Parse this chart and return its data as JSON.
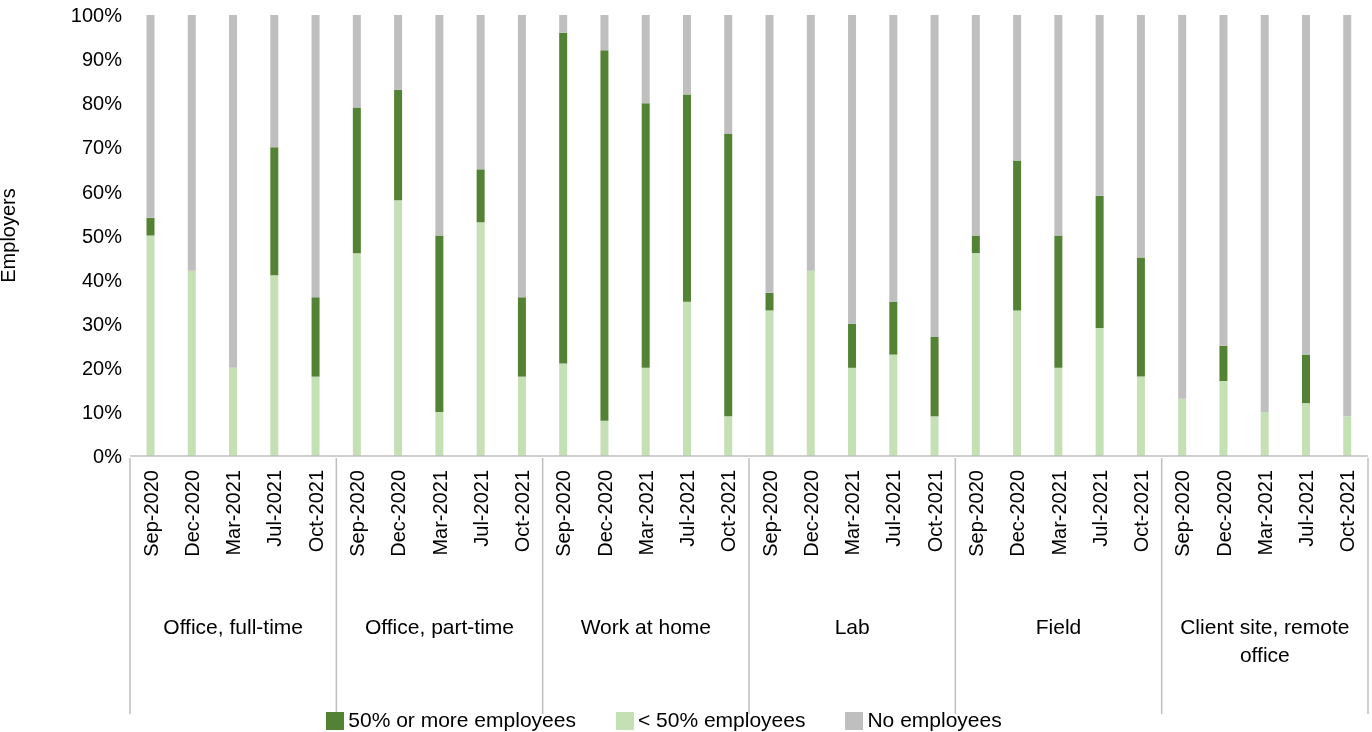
{
  "chart_data": {
    "type": "bar",
    "stacked": true,
    "ylabel": "Employers",
    "categories": [
      "Sep-2020",
      "Dec-2020",
      "Mar-2021",
      "Jul-2021",
      "Oct-2021",
      "Sep-2020",
      "Dec-2020",
      "Mar-2021",
      "Jul-2021",
      "Oct-2021",
      "Sep-2020",
      "Dec-2020",
      "Mar-2021",
      "Jul-2021",
      "Oct-2021",
      "Sep-2020",
      "Dec-2020",
      "Mar-2021",
      "Jul-2021",
      "Oct-2021",
      "Sep-2020",
      "Dec-2020",
      "Mar-2021",
      "Jul-2021",
      "Oct-2021",
      "Sep-2020",
      "Dec-2020",
      "Mar-2021",
      "Jul-2021",
      "Oct-2021"
    ],
    "annotations": [
      "Office, full-time",
      "Office, part-time",
      "Work at home",
      "Lab",
      "Field",
      "Client site, remote office"
    ],
    "series": [
      {
        "name": "< 50% employees",
        "color": "#c5e0b4",
        "values": [
          50,
          42,
          20,
          41,
          18,
          46,
          58,
          10,
          53,
          18,
          21,
          8,
          20,
          35,
          9,
          33,
          42,
          20,
          23,
          9,
          46,
          33,
          20,
          29,
          18,
          13,
          17,
          10,
          12,
          9
        ]
      },
      {
        "name": "50% or more employees",
        "color": "#548235",
        "values": [
          4,
          0,
          0,
          29,
          18,
          33,
          25,
          40,
          12,
          18,
          75,
          84,
          60,
          47,
          64,
          4,
          0,
          10,
          12,
          18,
          4,
          34,
          30,
          30,
          27,
          0,
          8,
          0,
          11,
          0
        ]
      },
      {
        "name": "No employees",
        "color": "#bfbfbf",
        "values": [
          46,
          58,
          80,
          30,
          64,
          21,
          17,
          50,
          35,
          64,
          4,
          8,
          20,
          18,
          27,
          63,
          58,
          70,
          65,
          73,
          50,
          33,
          50,
          41,
          55,
          87,
          75,
          90,
          77,
          91
        ]
      }
    ],
    "ylim": [
      0,
      100
    ],
    "yticks": [
      {
        "value": 0,
        "label": "0%"
      },
      {
        "value": 10,
        "label": "10%"
      },
      {
        "value": 20,
        "label": "20%"
      },
      {
        "value": 30,
        "label": "30%"
      },
      {
        "value": 40,
        "label": "40%"
      },
      {
        "value": 50,
        "label": "50%"
      },
      {
        "value": 60,
        "label": "60%"
      },
      {
        "value": 70,
        "label": "70%"
      },
      {
        "value": 80,
        "label": "80%"
      },
      {
        "value": 90,
        "label": "90%"
      },
      {
        "value": 100,
        "label": "100%"
      }
    ],
    "legend": "bottom"
  }
}
